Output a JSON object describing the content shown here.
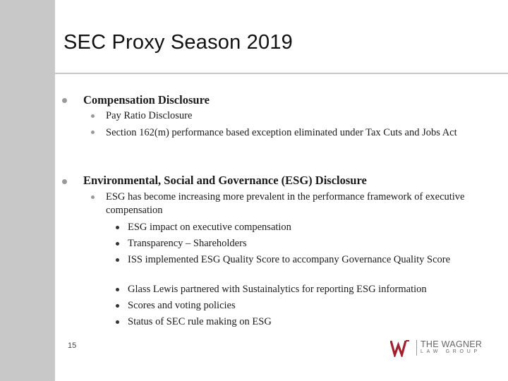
{
  "title": "SEC Proxy Season 2019",
  "sections": [
    {
      "heading": "Compensation Disclosure",
      "items": [
        "Pay Ratio Disclosure",
        "Section 162(m) performance based exception eliminated under Tax Cuts and Jobs Act"
      ]
    },
    {
      "heading": "Environmental, Social and Governance (ESG) Disclosure",
      "items": [
        "ESG has become increasing more prevalent in the performance framework of executive compensation"
      ],
      "subitems": [
        "ESG impact on executive compensation",
        "Transparency – Shareholders",
        "ISS implemented ESG Quality Score to accompany Governance Quality Score",
        "Glass Lewis partnered with Sustainalytics for reporting ESG information",
        "Scores and voting policies",
        "Status of SEC rule making on ESG"
      ]
    }
  ],
  "page_number": "15",
  "logo": {
    "name": "THE WAGNER",
    "subtitle": "LAW GROUP",
    "colors": {
      "primary": "#a31f2e",
      "text": "#666666"
    }
  }
}
